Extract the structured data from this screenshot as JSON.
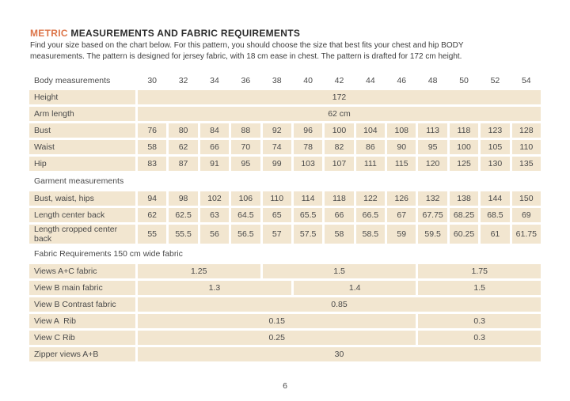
{
  "header": {
    "title_accent": "METRIC",
    "title_rest": " MEASUREMENTS AND FABRIC REQUIREMENTS",
    "intro_lines": [
      "Find your size based on the chart below. For this pattern, you should choose the size that best fits your chest and hip BODY",
      "measurements. The pattern is designed for jersey fabric, with 18 cm ease in chest. The pattern is drafted for 172 cm height."
    ]
  },
  "colors": {
    "accent": "#dc7448",
    "cell_bg": "#f2e6d0",
    "text": "#4a4a4a",
    "title": "#2b2b2b"
  },
  "table": {
    "header_label": "Body measurements",
    "sizes": [
      "30",
      "32",
      "34",
      "36",
      "38",
      "40",
      "42",
      "44",
      "46",
      "48",
      "50",
      "52",
      "54"
    ],
    "rows": [
      {
        "type": "data",
        "label": "Height",
        "cells": [
          {
            "value": "172",
            "span": 13
          }
        ]
      },
      {
        "type": "data",
        "label": "Arm length",
        "cells": [
          {
            "value": "62 cm",
            "span": 13
          }
        ]
      },
      {
        "type": "data",
        "label": "Bust",
        "cells": [
          {
            "value": "76"
          },
          {
            "value": "80"
          },
          {
            "value": "84"
          },
          {
            "value": "88"
          },
          {
            "value": "92"
          },
          {
            "value": "96"
          },
          {
            "value": "100"
          },
          {
            "value": "104"
          },
          {
            "value": "108"
          },
          {
            "value": "113"
          },
          {
            "value": "118"
          },
          {
            "value": "123"
          },
          {
            "value": "128"
          }
        ]
      },
      {
        "type": "data",
        "label": "Waist",
        "cells": [
          {
            "value": "58"
          },
          {
            "value": "62"
          },
          {
            "value": "66"
          },
          {
            "value": "70"
          },
          {
            "value": "74"
          },
          {
            "value": "78"
          },
          {
            "value": "82"
          },
          {
            "value": "86"
          },
          {
            "value": "90"
          },
          {
            "value": "95"
          },
          {
            "value": "100"
          },
          {
            "value": "105"
          },
          {
            "value": "110"
          }
        ]
      },
      {
        "type": "data",
        "label": "Hip",
        "cells": [
          {
            "value": "83"
          },
          {
            "value": "87"
          },
          {
            "value": "91"
          },
          {
            "value": "95"
          },
          {
            "value": "99"
          },
          {
            "value": "103"
          },
          {
            "value": "107"
          },
          {
            "value": "111"
          },
          {
            "value": "115"
          },
          {
            "value": "120"
          },
          {
            "value": "125"
          },
          {
            "value": "130"
          },
          {
            "value": "135"
          }
        ]
      },
      {
        "type": "section",
        "label": "Garment measurements"
      },
      {
        "type": "data",
        "label": "Bust, waist, hips",
        "cells": [
          {
            "value": "94"
          },
          {
            "value": "98"
          },
          {
            "value": "102"
          },
          {
            "value": "106"
          },
          {
            "value": "110"
          },
          {
            "value": "114"
          },
          {
            "value": "118"
          },
          {
            "value": "122"
          },
          {
            "value": "126"
          },
          {
            "value": "132"
          },
          {
            "value": "138"
          },
          {
            "value": "144"
          },
          {
            "value": "150"
          }
        ]
      },
      {
        "type": "data",
        "label": "Length center back",
        "cells": [
          {
            "value": "62"
          },
          {
            "value": "62.5"
          },
          {
            "value": "63"
          },
          {
            "value": "64.5"
          },
          {
            "value": "65"
          },
          {
            "value": "65.5"
          },
          {
            "value": "66"
          },
          {
            "value": "66.5"
          },
          {
            "value": "67"
          },
          {
            "value": "67.75"
          },
          {
            "value": "68.25"
          },
          {
            "value": "68.5"
          },
          {
            "value": "69"
          }
        ]
      },
      {
        "type": "data",
        "label": "Length cropped center back",
        "cells": [
          {
            "value": "55"
          },
          {
            "value": "55.5"
          },
          {
            "value": "56"
          },
          {
            "value": "56.5"
          },
          {
            "value": "57"
          },
          {
            "value": "57.5"
          },
          {
            "value": "58"
          },
          {
            "value": "58.5"
          },
          {
            "value": "59"
          },
          {
            "value": "59.5"
          },
          {
            "value": "60.25"
          },
          {
            "value": "61"
          },
          {
            "value": "61.75"
          }
        ]
      },
      {
        "type": "section",
        "label": "Fabric Requirements 150 cm wide fabric"
      },
      {
        "type": "data",
        "label": "Views A+C fabric",
        "cells": [
          {
            "value": "1.25",
            "span": 4
          },
          {
            "value": "1.5",
            "span": 5
          },
          {
            "value": "1.75",
            "span": 4
          }
        ]
      },
      {
        "type": "data",
        "label": "View B main fabric",
        "cells": [
          {
            "value": "1.3",
            "span": 5
          },
          {
            "value": "1.4",
            "span": 4
          },
          {
            "value": "1.5",
            "span": 4
          }
        ]
      },
      {
        "type": "data",
        "label": "View B Contrast fabric",
        "cells": [
          {
            "value": "0.85",
            "span": 13
          }
        ]
      },
      {
        "type": "data",
        "label": "View A  Rib",
        "cells": [
          {
            "value": "0.15",
            "span": 9
          },
          {
            "value": "0.3",
            "span": 4
          }
        ]
      },
      {
        "type": "data",
        "label": "View C Rib",
        "cells": [
          {
            "value": "0.25",
            "span": 9
          },
          {
            "value": "0.3",
            "span": 4
          }
        ]
      },
      {
        "type": "data",
        "label": "Zipper views A+B",
        "cells": [
          {
            "value": "30",
            "span": 13
          }
        ]
      }
    ]
  },
  "footer": {
    "page_number": "6"
  }
}
